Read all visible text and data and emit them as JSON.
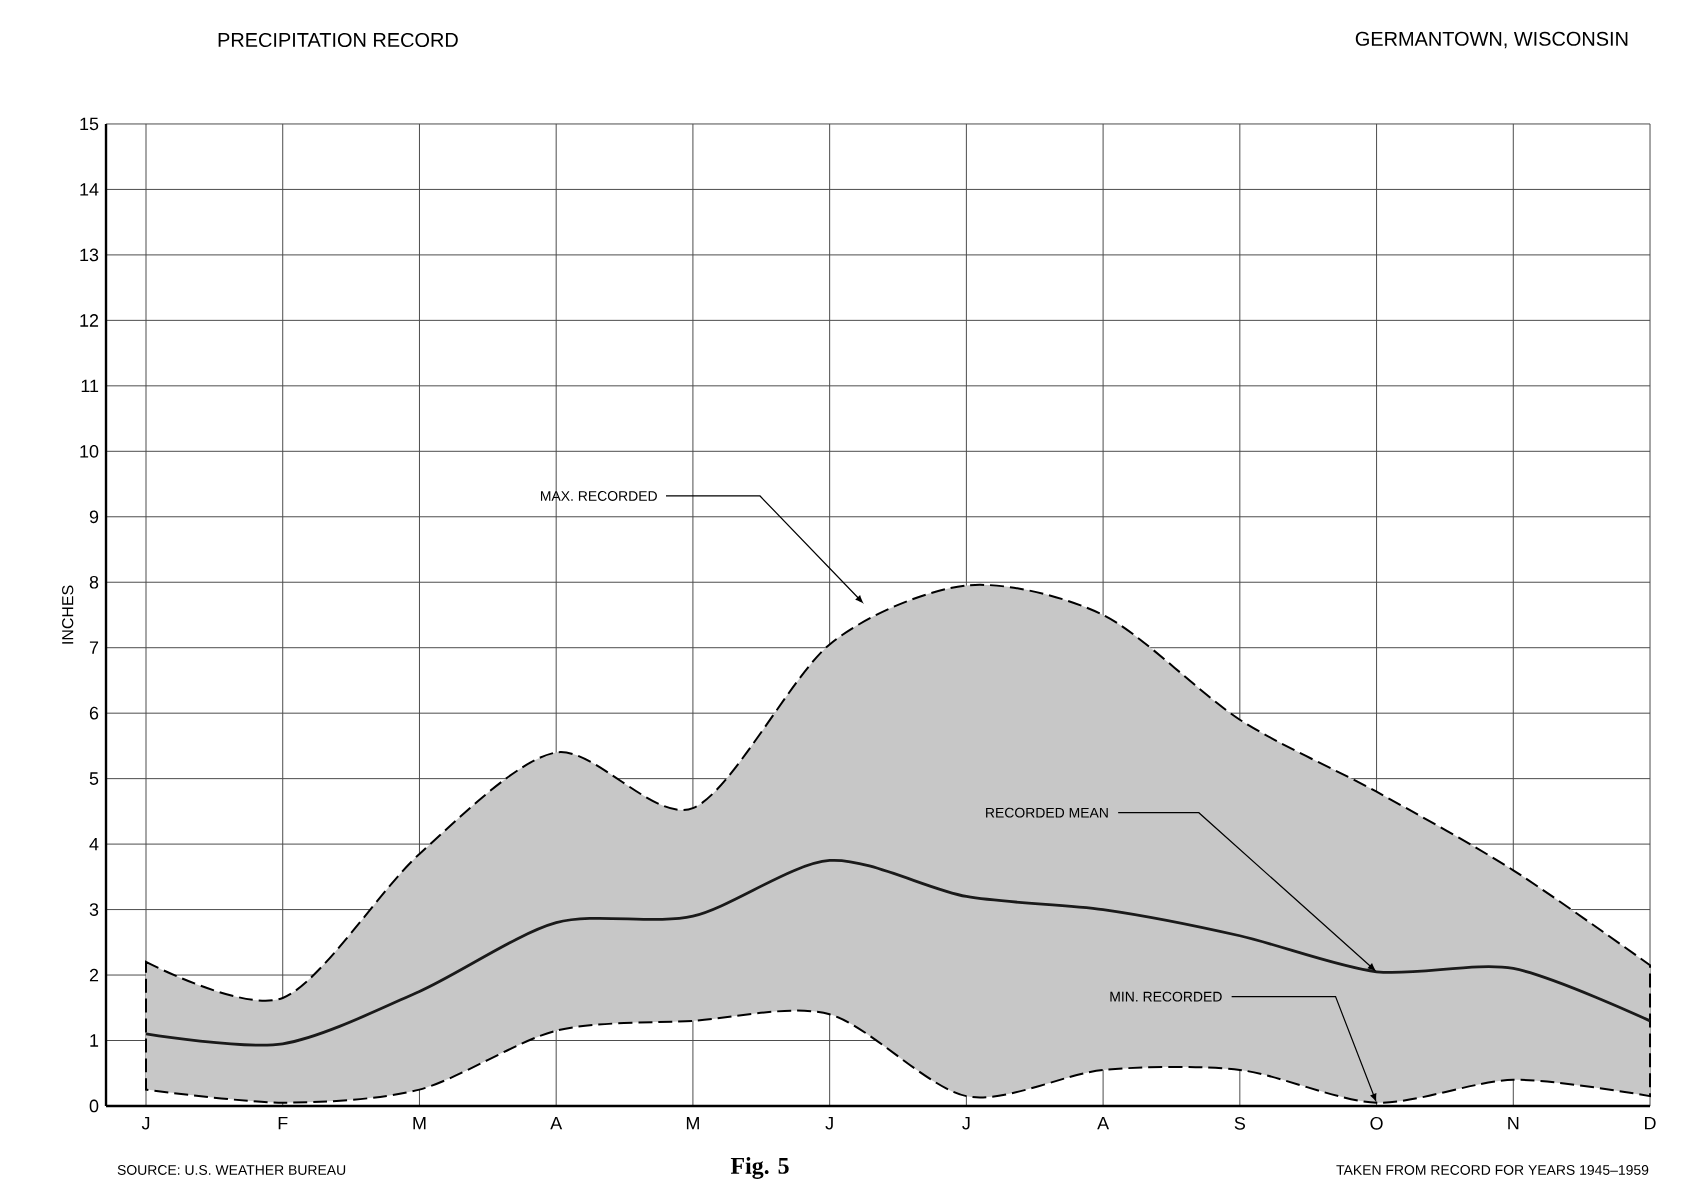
{
  "chart_data": {
    "type": "line",
    "title": "PRECIPITATION RECORD",
    "subtitle": "GERMANTOWN, WISCONSIN",
    "ylabel": "INCHES",
    "categories": [
      "J",
      "F",
      "M",
      "A",
      "M",
      "J",
      "J",
      "A",
      "S",
      "O",
      "N",
      "D"
    ],
    "series": [
      {
        "color": "#1a1a1a",
        "values": [
          1.1,
          0.95,
          1.75,
          2.8,
          2.9,
          3.75,
          3.2,
          3.0,
          2.6,
          2.05,
          2.1,
          1.3
        ],
        "upper": [
          2.2,
          1.65,
          3.85,
          5.4,
          4.55,
          7.05,
          7.95,
          7.5,
          5.9,
          4.8,
          3.6,
          2.15
        ],
        "lower": [
          0.25,
          0.05,
          0.25,
          1.15,
          1.3,
          1.4,
          0.15,
          0.55,
          0.55,
          0.05,
          0.4,
          0.15
        ]
      }
    ],
    "ylim": [
      0,
      15
    ],
    "yticks": [
      0,
      1,
      2,
      3,
      4,
      5,
      6,
      7,
      8,
      9,
      10,
      11,
      12,
      13,
      14,
      15
    ],
    "grid": true,
    "marker": "none",
    "line_style": "solid",
    "annotations": [
      "MAX. RECORDED",
      {
        "text": "RECORDED MEAN",
        "x": "O",
        "y": 2.05
      },
      {
        "text": "MIN. RECORDED",
        "x": "O",
        "y": 0.05
      },
      "SOURCE: U.S. WEATHER BUREAU",
      "Fig. 5",
      "TAKEN FROM RECORD FOR YEARS 1945–1959"
    ]
  }
}
